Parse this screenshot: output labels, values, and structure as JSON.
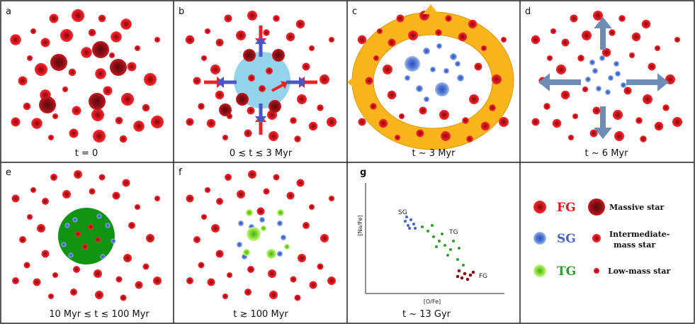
{
  "panels": {
    "a": {
      "letter": "a",
      "time": "t = 0"
    },
    "b": {
      "letter": "b",
      "time": "0 ≲ t ≲ 3 Myr"
    },
    "c": {
      "letter": "c",
      "time": "t ~ 3 Myr"
    },
    "d": {
      "letter": "d",
      "time": "t ~ 6 Myr"
    },
    "e": {
      "letter": "e",
      "time": "10 Myr ≲ t ≲ 100 Myr"
    },
    "f": {
      "letter": "f",
      "time": "t ≳ 100 Myr"
    },
    "g": {
      "letter": "g",
      "time": "t ~ 13 Gyr",
      "xlabel": "[O/Fe]",
      "ylabel": "[Na/Fe]",
      "group_sg": "SG",
      "group_tg": "TG",
      "group_fg": "FG"
    }
  },
  "legend": {
    "fg": "FG",
    "sg": "SG",
    "tg": "TG",
    "massive": "Massive star",
    "intermediate_1": "Intermediate-",
    "intermediate_2": "mass star",
    "low": "Low-mass star"
  },
  "colors": {
    "star_red": "#e51c22",
    "star_red_core": "#a80d12",
    "massive": "#8e1016",
    "sg_blue": "#6d8fd8",
    "tg_green": "#8ee03a",
    "bubble_cyan": "#93d4ea",
    "shell_orange": "#f9b51b",
    "gas_green": "#129413",
    "arrow_red": "#e8242b",
    "arrow_blue": "#4a55c8",
    "arrow_grey": "#6e8cb4"
  }
}
